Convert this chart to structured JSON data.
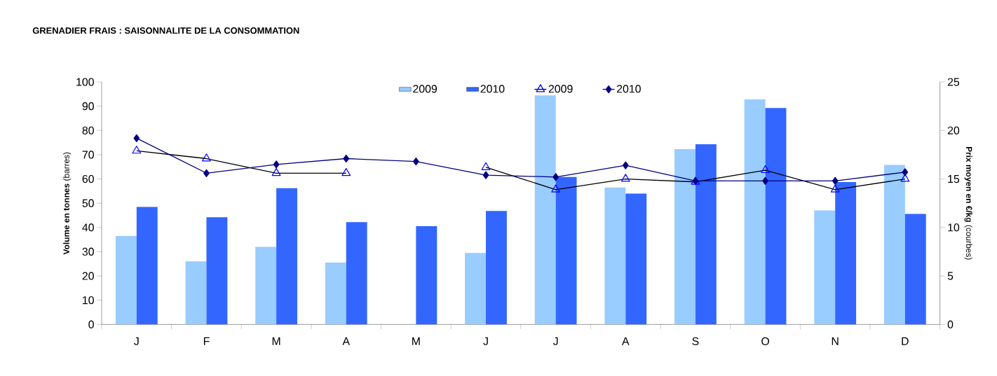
{
  "chart_data": {
    "type": "bar",
    "title": "GRENADIER FRAIS : SAISONNALITE DE LA CONSOMMATION",
    "ylabel": "**Volume en tonnes** (barres)",
    "y2label": "**Prix moyen en €/kg** (courbes)",
    "categories": [
      "J",
      "F",
      "M",
      "A",
      "M",
      "J",
      "J",
      "A",
      "S",
      "O",
      "N",
      "D"
    ],
    "series": [
      {
        "name": "2009",
        "color": "#99ccff",
        "values": [
          36.5,
          26,
          32,
          25.5,
          null,
          29.5,
          94.5,
          56.5,
          72.3,
          92.8,
          47,
          65.8
        ]
      },
      {
        "name": "2010",
        "color": "#3366ff",
        "values": [
          48.5,
          44.2,
          56.2,
          42.2,
          40.5,
          46.8,
          60.8,
          54,
          74.3,
          89.3,
          58.7,
          45.6
        ]
      },
      {
        "name": "2009",
        "type": "line",
        "axis": "y2",
        "marker": "triangle",
        "color": "#000000",
        "values": [
          17.9,
          17.1,
          15.6,
          15.6,
          null,
          16.2,
          13.9,
          15.0,
          14.7,
          15.9,
          13.9,
          15.0
        ]
      },
      {
        "name": "2010",
        "type": "line",
        "axis": "y2",
        "marker": "diamond",
        "color": "#000080",
        "values": [
          19.2,
          15.6,
          16.5,
          17.1,
          16.8,
          15.4,
          15.2,
          16.4,
          14.8,
          14.8,
          14.8,
          15.7
        ]
      }
    ],
    "ylim": [
      0,
      100
    ],
    "yticks": [
      0,
      10,
      20,
      30,
      40,
      50,
      60,
      70,
      80,
      90,
      100
    ],
    "y2lim": [
      0,
      25
    ],
    "y2ticks": [
      0,
      5,
      10,
      15,
      20,
      25
    ],
    "legend": "top",
    "grid": false
  }
}
